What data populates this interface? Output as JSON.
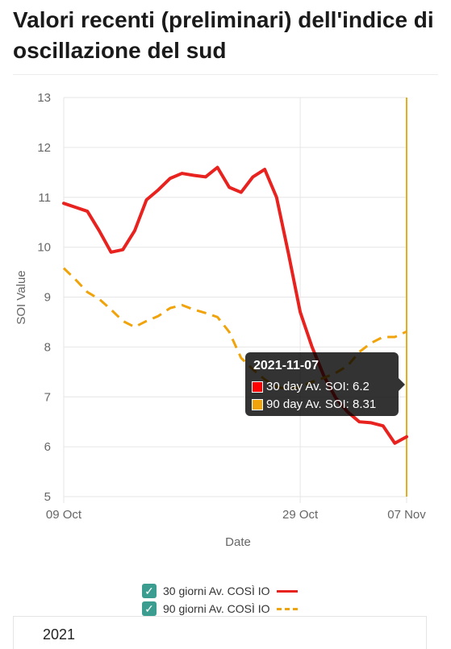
{
  "page": {
    "title": "Valori recenti (preliminari) dell'indice di oscillazione del sud",
    "year_label": "2021"
  },
  "chart_data": {
    "type": "line",
    "title": "",
    "xlabel": "Date",
    "ylabel": "SOI Value",
    "ylim": [
      5,
      13
    ],
    "yticks": [
      5,
      6,
      7,
      8,
      9,
      10,
      11,
      12,
      13
    ],
    "x_start": "2021-10-09",
    "x_end": "2021-11-07",
    "xticks": [
      {
        "label": "09 Oct",
        "date": "2021-10-09"
      },
      {
        "label": "29 Oct",
        "date": "2021-10-29"
      },
      {
        "label": "07 Nov",
        "date": "2021-11-07"
      }
    ],
    "grid": true,
    "series": [
      {
        "name": "30 giorni Av. COSÌ IO",
        "color": "#e8231f",
        "style": "solid",
        "x": [
          "2021-10-09",
          "2021-10-10",
          "2021-10-11",
          "2021-10-12",
          "2021-10-13",
          "2021-10-14",
          "2021-10-15",
          "2021-10-16",
          "2021-10-17",
          "2021-10-18",
          "2021-10-19",
          "2021-10-20",
          "2021-10-21",
          "2021-10-22",
          "2021-10-23",
          "2021-10-24",
          "2021-10-25",
          "2021-10-26",
          "2021-10-27",
          "2021-10-28",
          "2021-10-29",
          "2021-10-30",
          "2021-10-31",
          "2021-11-01",
          "2021-11-02",
          "2021-11-03",
          "2021-11-04",
          "2021-11-05",
          "2021-11-06",
          "2021-11-07"
        ],
        "values": [
          10.88,
          10.8,
          10.72,
          10.33,
          9.9,
          9.95,
          10.33,
          10.95,
          11.15,
          11.38,
          11.48,
          11.44,
          11.41,
          11.6,
          11.2,
          11.1,
          11.41,
          11.56,
          11.0,
          9.88,
          8.7,
          8.0,
          7.42,
          6.98,
          6.7,
          6.5,
          6.48,
          6.42,
          6.07,
          6.2
        ]
      },
      {
        "name": "90 giorni Av. COSÌ IO",
        "color": "#f0a30a",
        "style": "dashed",
        "x": [
          "2021-10-09",
          "2021-10-10",
          "2021-10-11",
          "2021-10-12",
          "2021-10-13",
          "2021-10-14",
          "2021-10-15",
          "2021-10-16",
          "2021-10-17",
          "2021-10-18",
          "2021-10-19",
          "2021-10-20",
          "2021-10-21",
          "2021-10-22",
          "2021-10-23",
          "2021-10-24",
          "2021-10-25",
          "2021-10-26",
          "2021-10-27",
          "2021-10-28",
          "2021-10-29",
          "2021-10-30",
          "2021-10-31",
          "2021-11-01",
          "2021-11-02",
          "2021-11-03",
          "2021-11-04",
          "2021-11-05",
          "2021-11-06",
          "2021-11-07"
        ],
        "values": [
          9.58,
          9.35,
          9.1,
          8.96,
          8.75,
          8.52,
          8.4,
          8.52,
          8.62,
          8.78,
          8.84,
          8.75,
          8.68,
          8.6,
          8.3,
          7.78,
          7.55,
          7.35,
          7.2,
          7.15,
          7.2,
          7.3,
          7.38,
          7.48,
          7.62,
          7.9,
          8.08,
          8.2,
          8.2,
          8.31
        ]
      }
    ],
    "highlight": {
      "date": "2021-11-07",
      "color": "#e3ae1f"
    },
    "tooltip": {
      "title": "2021-11-07",
      "rows": [
        {
          "text": "30 day Av. SOI: 6.2",
          "color": "#ff0000"
        },
        {
          "text": "90 day Av. SOI: 8.31",
          "color": "#f0a30a"
        }
      ]
    },
    "legend": [
      {
        "label": "30 giorni Av. COSÌ IO",
        "color": "#e8231f",
        "style": "solid"
      },
      {
        "label": "90 giorni Av. COSÌ IO",
        "color": "#f0a30a",
        "style": "dashed"
      }
    ],
    "legend_position": "bottom"
  }
}
